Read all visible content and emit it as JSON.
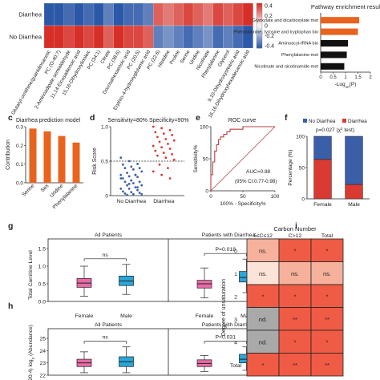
{
  "panel_letters": [
    "c",
    "d",
    "e",
    "f",
    "g",
    "h",
    "i"
  ],
  "colors": {
    "red": "#d93a32",
    "blue": "#3a5fa8",
    "orange": "#e8641e",
    "black": "#111111",
    "pink": "#e86aa6",
    "cyan": "#2aa6d8",
    "grey": "#a9a9a9",
    "roc": "#b5413f",
    "heat_hi": "#ef5b45",
    "heat_mid": "#f6b19c",
    "heat_lo": "#fbe3d8"
  },
  "chart_data": [
    {
      "id": "a",
      "type": "heatmap",
      "rows": [
        "Diarrhea",
        "No Diarrhea"
      ],
      "columns": [
        "Glutaryl-ornithine/guanidinoacetic",
        "PC (O-40:7)",
        "2-Aminoadipate semialdehyde",
        "11,14-Eicosadienoic acid",
        "15,16-Dihydroxylinoleic",
        "PC (34:1)",
        "Citrate",
        "PC (38:6)",
        "Docosahexaenoic acid",
        "PC (20:5)",
        "Erythro-4-hydroxyglutamic acid",
        "PC (22:6)",
        "Histidine",
        "Proline",
        "Serine",
        "Uridine",
        "Nicotinate",
        "Phenylalanine",
        "Glycerol",
        "9,10-Dihydroxystearic acid",
        "16,16-Dihydroxyhexadecanoic acid"
      ],
      "values": [
        [
          -0.4,
          -0.4,
          -0.35,
          -0.4,
          -0.35,
          -0.4,
          -0.3,
          -0.4,
          -0.35,
          -0.35,
          -0.3,
          0.3,
          0.25,
          0.3,
          0.35,
          0.3,
          0.25,
          0.35,
          0.3,
          0.35,
          0.4
        ],
        [
          0.4,
          0.4,
          0.35,
          0.4,
          0.35,
          0.4,
          0.3,
          0.4,
          0.35,
          0.35,
          0.3,
          -0.3,
          -0.25,
          -0.3,
          -0.35,
          -0.3,
          -0.25,
          -0.35,
          -0.3,
          -0.35,
          -0.4
        ]
      ],
      "colorbar_ticks": [
        "0.4",
        "0.2",
        "0",
        "-0.2",
        "-0.4"
      ]
    },
    {
      "id": "b",
      "type": "bar",
      "orientation": "horizontal",
      "title": "Pathway enrichment result",
      "categories": [
        "Glyoxylate and dicarboxylate met",
        "Phenylalanine, tyrosine and tryptophan bio",
        "Aminoacyl-tRNA bio",
        "Phenylalanine met",
        "Nicotinate and nicotinamide met"
      ],
      "values": [
        1.55,
        1.5,
        1.1,
        1.05,
        0.95
      ],
      "colors": [
        "orange",
        "orange",
        "black",
        "black",
        "black"
      ],
      "xticks": [
        "0",
        "0.5",
        "1",
        "1.5",
        "2"
      ],
      "xlim": [
        0,
        2
      ],
      "xlabel_main": "-Log",
      "xlabel_sub": "10",
      "xlabel_tail": "(P)"
    },
    {
      "id": "c",
      "type": "bar",
      "title": "Diarrhea prediction model",
      "categories": [
        "Serine",
        "Sex",
        "Uridine",
        "Phenylalanine"
      ],
      "values": [
        0.29,
        0.275,
        0.25,
        0.215
      ],
      "colors": [
        "orange",
        "orange",
        "orange",
        "orange"
      ],
      "ylabel": "Contribution",
      "yticks": [
        "0.0",
        "0.1",
        "0.2",
        "0.3"
      ],
      "ylim": [
        0,
        0.3
      ]
    },
    {
      "id": "d",
      "type": "scatter",
      "title": "Sensitivity=80%  Specificity=90%",
      "categories": [
        "No Diarrhea",
        "Diarrhea"
      ],
      "ylabel": "Risk Score",
      "yticks": [
        "0",
        "0.5",
        "1.0"
      ],
      "ylim": [
        0,
        1
      ],
      "threshold": 0.5,
      "series": [
        {
          "name": "No Diarrhea",
          "values": [
            0.55,
            0.5,
            0.46,
            0.45,
            0.42,
            0.4,
            0.4,
            0.38,
            0.35,
            0.33,
            0.3,
            0.3,
            0.28,
            0.27,
            0.25,
            0.22,
            0.2,
            0.2,
            0.18,
            0.15,
            0.15,
            0.12,
            0.1,
            0.1,
            0.08,
            0.06,
            0.05,
            0.04,
            0.03,
            0.02,
            0.02,
            0.01,
            0.3,
            0.25,
            0.17,
            0.12
          ]
        },
        {
          "name": "Diarrhea",
          "values": [
            1.0,
            0.98,
            0.95,
            0.92,
            0.9,
            0.88,
            0.85,
            0.82,
            0.8,
            0.78,
            0.75,
            0.72,
            0.7,
            0.68,
            0.65,
            0.62,
            0.6,
            0.58,
            0.55,
            0.52,
            0.45,
            0.4,
            0.35,
            0.3,
            0.25
          ]
        }
      ]
    },
    {
      "id": "e",
      "type": "line",
      "title": "ROC curve",
      "xlabel": "100% - Specificity%",
      "ylabel": "Sensitivity%",
      "xticks": [
        "0",
        "50",
        "100"
      ],
      "yticks": [
        "0",
        "50",
        "100"
      ],
      "xlim": [
        0,
        100
      ],
      "ylim": [
        0,
        100
      ],
      "auc": "AUC=0.88",
      "ci": "(95% CI:0.77-0.98)",
      "series": [
        {
          "x": [
            0,
            0,
            3,
            3,
            6,
            6,
            9,
            9,
            12,
            12,
            15,
            15,
            20,
            20,
            25,
            25,
            30,
            30,
            50,
            50,
            100
          ],
          "y": [
            0,
            25,
            25,
            45,
            45,
            62,
            62,
            72,
            72,
            80,
            80,
            84,
            84,
            88,
            88,
            92,
            92,
            96,
            96,
            100,
            100
          ]
        }
      ]
    },
    {
      "id": "f",
      "type": "bar",
      "stacked": true,
      "categories": [
        "Female",
        "Male"
      ],
      "series": [
        {
          "name": "Diarrhea",
          "values": [
            63,
            23
          ]
        },
        {
          "name": "No Diarrhea",
          "values": [
            37,
            77
          ]
        }
      ],
      "legend": [
        "No Diarrhea",
        "Diarrhea"
      ],
      "annotation_main": "p=0.027 (χ",
      "annotation_sup": "2",
      "annotation_tail": " test)",
      "ylabel": "Percentage (%)",
      "yticks": [
        "0",
        "50",
        "100"
      ],
      "ylim": [
        0,
        100
      ]
    },
    {
      "id": "g",
      "type": "box",
      "ylabel": "Total Carnitine Level",
      "groups": [
        {
          "title": "All Patients",
          "sig": "ns",
          "boxes": [
            {
              "label": "Female",
              "color": "pink",
              "whislo": 0.15,
              "q1": 0.4,
              "med": 0.52,
              "q3": 0.65,
              "whishi": 1.0
            },
            {
              "label": "Male",
              "color": "cyan",
              "whislo": 0.2,
              "q1": 0.45,
              "med": 0.58,
              "q3": 0.72,
              "whishi": 1.05
            }
          ]
        },
        {
          "title": "Patients with Diarrhea",
          "sig": "P=0.018",
          "boxes": [
            {
              "label": "Female",
              "color": "pink",
              "whislo": 0.1,
              "q1": 0.38,
              "med": 0.5,
              "q3": 0.6,
              "whishi": 0.95
            },
            {
              "label": "Male",
              "color": "cyan",
              "whislo": 0.25,
              "q1": 0.55,
              "med": 0.68,
              "q3": 0.85,
              "whishi": 1.2
            }
          ]
        }
      ],
      "yticks": [
        "0.0",
        "0.5",
        "1.0",
        "1.5"
      ],
      "ylim": [
        0,
        1.5
      ]
    },
    {
      "id": "h",
      "type": "box",
      "ylabel_main": "ar (20:4) log",
      "ylabel_sub": "2",
      "ylabel_tail": " (Abundance)",
      "groups": [
        {
          "title": "All Patients",
          "sig": "ns",
          "boxes": [
            {
              "label": "Female",
              "color": "pink",
              "whislo": 22.2,
              "q1": 22.7,
              "med": 23.0,
              "q3": 23.3,
              "whishi": 23.9
            },
            {
              "label": "Male",
              "color": "cyan",
              "whislo": 22.2,
              "q1": 22.7,
              "med": 23.1,
              "q3": 23.5,
              "whishi": 24.3
            }
          ]
        },
        {
          "title": "Patients with Diarrhea",
          "sig": "P=0.031",
          "boxes": [
            {
              "label": "Female",
              "color": "pink",
              "whislo": 22.3,
              "q1": 22.7,
              "med": 22.95,
              "q3": 23.25,
              "whishi": 23.6
            },
            {
              "label": "Male",
              "color": "cyan",
              "whislo": 22.4,
              "q1": 23.0,
              "med": 23.3,
              "q3": 23.7,
              "whishi": 24.3
            }
          ]
        }
      ],
      "yticks": [
        "22",
        "23",
        "24",
        "25"
      ],
      "ylim": [
        22,
        25
      ]
    },
    {
      "id": "i",
      "type": "heatmap",
      "title": "Carbon Number",
      "columns": [
        "5≤C≤12",
        "C>12",
        "Total"
      ],
      "rows": [
        "0",
        "1",
        "2",
        "3",
        "4",
        "Total"
      ],
      "ylabel": "Degree of unsaturation",
      "cells": [
        [
          {
            "t": "ns.",
            "c": "heat_mid"
          },
          {
            "t": "*",
            "c": "heat_hi"
          },
          {
            "t": "*",
            "c": "heat_hi"
          }
        ],
        [
          {
            "t": "ns.",
            "c": "heat_lo"
          },
          {
            "t": "ns.",
            "c": "heat_mid"
          },
          {
            "t": "ns.",
            "c": "heat_mid"
          }
        ],
        [
          {
            "t": "*",
            "c": "heat_hi"
          },
          {
            "t": "*",
            "c": "heat_hi"
          },
          {
            "t": "*",
            "c": "heat_hi"
          }
        ],
        [
          {
            "t": "nd.",
            "c": "grey"
          },
          {
            "t": "**",
            "c": "heat_hi"
          },
          {
            "t": "**",
            "c": "heat_hi"
          }
        ],
        [
          {
            "t": "nd.",
            "c": "grey"
          },
          {
            "t": "*",
            "c": "heat_hi"
          },
          {
            "t": "*",
            "c": "heat_hi"
          }
        ],
        [
          {
            "t": "*",
            "c": "heat_hi"
          },
          {
            "t": "**",
            "c": "heat_hi"
          },
          {
            "t": "**",
            "c": "heat_hi"
          }
        ]
      ]
    }
  ]
}
